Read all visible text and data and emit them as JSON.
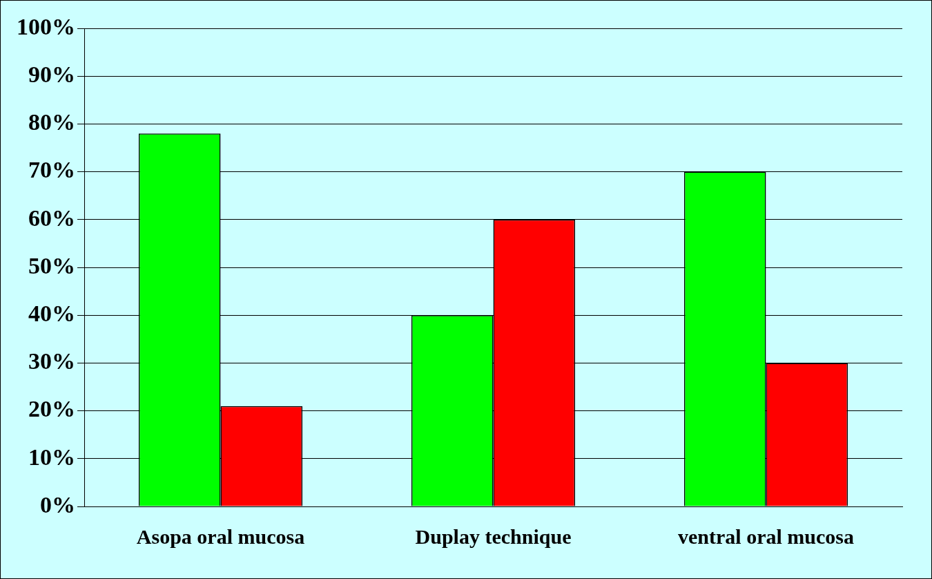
{
  "chart_data": {
    "type": "bar",
    "categories": [
      "Asopa oral mucosa",
      "Duplay technique",
      "ventral oral mucosa"
    ],
    "series": [
      {
        "color": "#00ff00",
        "values": [
          78,
          40,
          70
        ]
      },
      {
        "color": "#ff0000",
        "values": [
          21,
          60,
          30
        ]
      }
    ],
    "ylim": [
      0,
      100
    ],
    "yticks": [
      {
        "value": 0,
        "label": "0%"
      },
      {
        "value": 10,
        "label": "10%"
      },
      {
        "value": 20,
        "label": "20%"
      },
      {
        "value": 30,
        "label": "30%"
      },
      {
        "value": 40,
        "label": "40%"
      },
      {
        "value": 50,
        "label": "50%"
      },
      {
        "value": 60,
        "label": "60%"
      },
      {
        "value": 70,
        "label": "70%"
      },
      {
        "value": 80,
        "label": "80%"
      },
      {
        "value": 90,
        "label": "90%"
      },
      {
        "value": 100,
        "label": "100%"
      }
    ],
    "grid": "y",
    "legend": false
  }
}
